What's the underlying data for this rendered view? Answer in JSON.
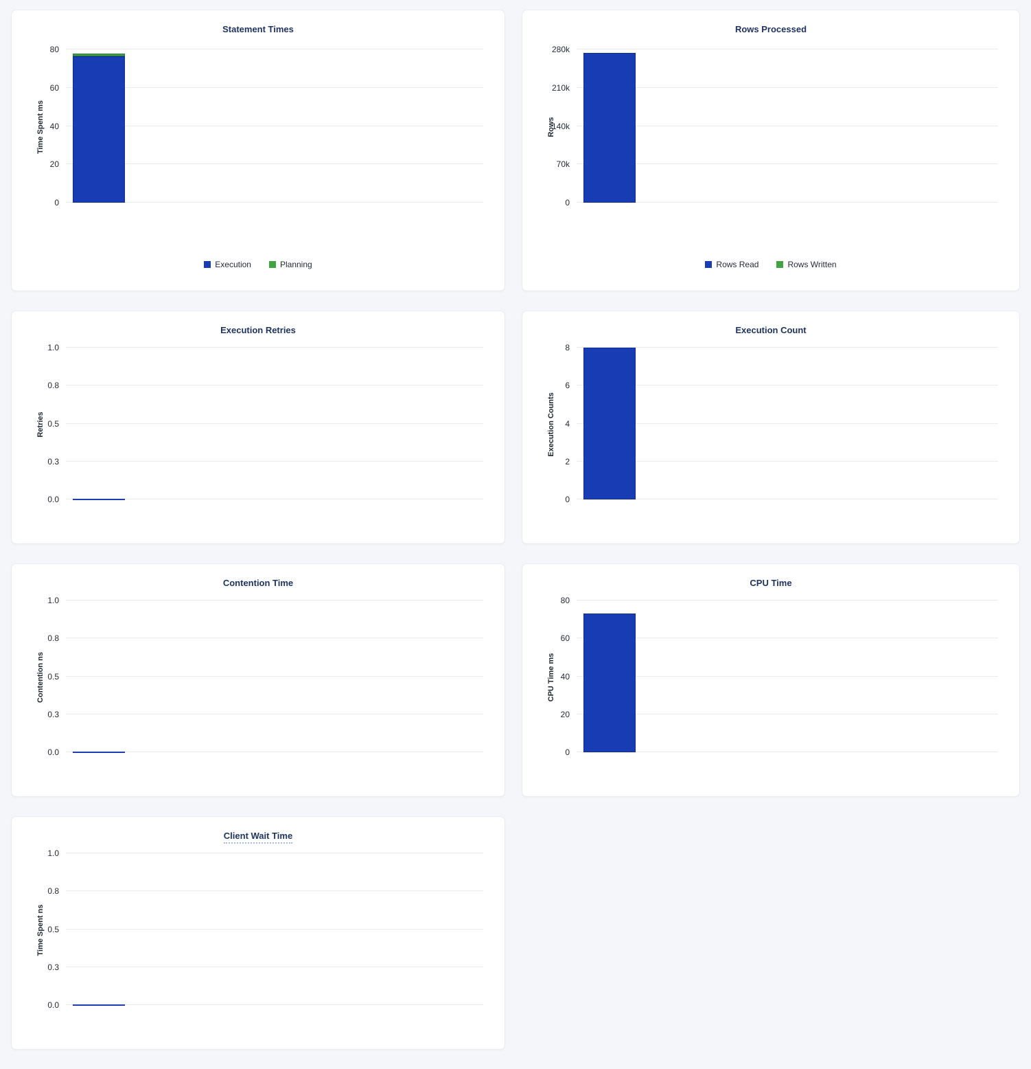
{
  "page": {
    "background": "#f4f6f9"
  },
  "chart_data": [
    {
      "id": "statement-times",
      "type": "bar",
      "title": "Statement Times",
      "ylabel": "Time Spent ms",
      "ylim": [
        0,
        80
      ],
      "grid": true,
      "legend_position": "bottom",
      "yticks": [
        {
          "value": 0,
          "label": "0"
        },
        {
          "value": 20,
          "label": "20"
        },
        {
          "value": 40,
          "label": "40"
        },
        {
          "value": 60,
          "label": "60"
        },
        {
          "value": 80,
          "label": "80"
        }
      ],
      "stacked": true,
      "show_legend": true,
      "series": [
        {
          "name": "Execution",
          "color": "#173cb3",
          "value": 76.5
        },
        {
          "name": "Planning",
          "color": "#42a343",
          "value": 1.5
        }
      ]
    },
    {
      "id": "rows-processed",
      "type": "bar",
      "title": "Rows Processed",
      "ylabel": "Rows",
      "ylim": [
        0,
        280000
      ],
      "grid": true,
      "legend_position": "bottom",
      "yticks": [
        {
          "value": 0,
          "label": "0"
        },
        {
          "value": 70000,
          "label": "70k"
        },
        {
          "value": 140000,
          "label": "140k"
        },
        {
          "value": 210000,
          "label": "210k"
        },
        {
          "value": 280000,
          "label": "280k"
        }
      ],
      "stacked": true,
      "show_legend": true,
      "series": [
        {
          "name": "Rows Read",
          "color": "#173cb3",
          "value": 274000
        },
        {
          "name": "Rows Written",
          "color": "#42a343",
          "value": 0
        }
      ]
    },
    {
      "id": "execution-retries",
      "type": "bar",
      "title": "Execution Retries",
      "ylabel": "Retries",
      "ylim": [
        0,
        1
      ],
      "grid": true,
      "yticks": [
        {
          "value": 0,
          "label": "0.0"
        },
        {
          "value": 0.25,
          "label": "0.3"
        },
        {
          "value": 0.5,
          "label": "0.5"
        },
        {
          "value": 0.75,
          "label": "0.8"
        },
        {
          "value": 1,
          "label": "1.0"
        }
      ],
      "show_legend": false,
      "series": [
        {
          "color": "#173cb3",
          "value": 0
        }
      ]
    },
    {
      "id": "execution-count",
      "type": "bar",
      "title": "Execution Count",
      "ylabel": "Execution Counts",
      "ylim": [
        0,
        8
      ],
      "grid": true,
      "yticks": [
        {
          "value": 0,
          "label": "0"
        },
        {
          "value": 2,
          "label": "2"
        },
        {
          "value": 4,
          "label": "4"
        },
        {
          "value": 6,
          "label": "6"
        },
        {
          "value": 8,
          "label": "8"
        }
      ],
      "show_legend": false,
      "series": [
        {
          "color": "#173cb3",
          "value": 8
        }
      ]
    },
    {
      "id": "contention-time",
      "type": "bar",
      "title": "Contention Time",
      "ylabel": "Contention ns",
      "ylim": [
        0,
        1
      ],
      "grid": true,
      "yticks": [
        {
          "value": 0,
          "label": "0.0"
        },
        {
          "value": 0.25,
          "label": "0.3"
        },
        {
          "value": 0.5,
          "label": "0.5"
        },
        {
          "value": 0.75,
          "label": "0.8"
        },
        {
          "value": 1,
          "label": "1.0"
        }
      ],
      "show_legend": false,
      "series": [
        {
          "color": "#173cb3",
          "value": 0
        }
      ]
    },
    {
      "id": "cpu-time",
      "type": "bar",
      "title": "CPU Time",
      "ylabel": "CPU Time ms",
      "ylim": [
        0,
        80
      ],
      "grid": true,
      "yticks": [
        {
          "value": 0,
          "label": "0"
        },
        {
          "value": 20,
          "label": "20"
        },
        {
          "value": 40,
          "label": "40"
        },
        {
          "value": 60,
          "label": "60"
        },
        {
          "value": 80,
          "label": "80"
        }
      ],
      "show_legend": false,
      "series": [
        {
          "color": "#173cb3",
          "value": 73
        }
      ]
    },
    {
      "id": "client-wait-time",
      "type": "bar",
      "title": "Client Wait Time",
      "title_tooltip": true,
      "ylabel": "Time Spent ns",
      "ylim": [
        0,
        1
      ],
      "grid": true,
      "yticks": [
        {
          "value": 0,
          "label": "0.0"
        },
        {
          "value": 0.25,
          "label": "0.3"
        },
        {
          "value": 0.5,
          "label": "0.5"
        },
        {
          "value": 0.75,
          "label": "0.8"
        },
        {
          "value": 1,
          "label": "1.0"
        }
      ],
      "show_legend": false,
      "series": [
        {
          "color": "#173cb3",
          "value": 0
        }
      ]
    }
  ]
}
